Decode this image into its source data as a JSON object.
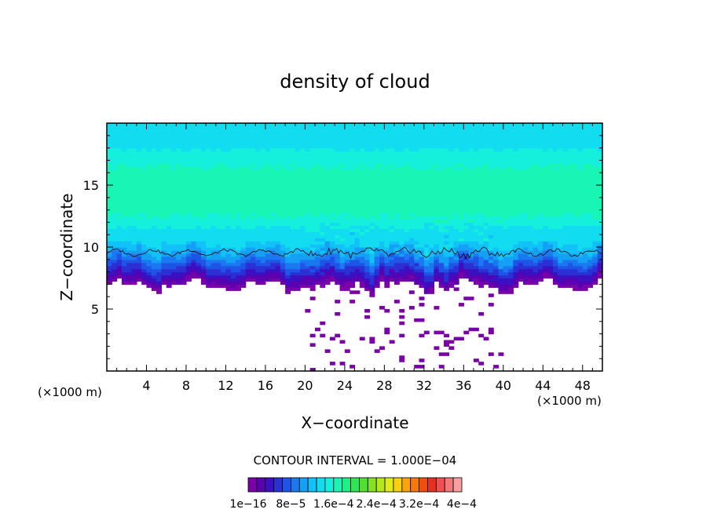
{
  "chart_data": {
    "type": "heatmap",
    "title": "density of cloud",
    "xlabel": "X−coordinate",
    "ylabel": "Z−coordinate",
    "x_unit_left": "(×1000 m)",
    "x_unit_right": "(×1000 m)",
    "xlim": [
      0,
      50
    ],
    "ylim": [
      0,
      20
    ],
    "x_ticks": [
      4,
      8,
      12,
      16,
      20,
      24,
      28,
      32,
      36,
      40,
      44,
      48
    ],
    "y_ticks": [
      5,
      10,
      15
    ],
    "contour_interval_text": "CONTOUR INTERVAL = 1.000E−04",
    "colorbar_labels": [
      "1e−16",
      "8e−5",
      "1.6e−4",
      "2.4e−4",
      "3.2e−4",
      "4e−4"
    ],
    "colorbar_colors": [
      "#7a00a8",
      "#5a00b0",
      "#3a10c0",
      "#2a30d4",
      "#1e55e6",
      "#1a78f0",
      "#14a0f5",
      "#10c2f8",
      "#12dcf0",
      "#14f0dc",
      "#18f5b4",
      "#1ef088",
      "#2ce654",
      "#50e030",
      "#84e020",
      "#b4e818",
      "#e0ec14",
      "#f8d010",
      "#f8a40e",
      "#f8780c",
      "#f04e10",
      "#e83020",
      "#f05050",
      "#f47878",
      "#f8a0a0"
    ],
    "profile": {
      "z": [
        0,
        6.8,
        7.0,
        7.4,
        7.8,
        8.2,
        8.6,
        9.0,
        9.4,
        10.0,
        10.6,
        11.2,
        12.0,
        13.0,
        14.0,
        15.0,
        16.0,
        17.0,
        17.6,
        18.2,
        19.0,
        20.0
      ],
      "level": [
        -1,
        -1,
        0,
        1,
        2,
        3,
        4,
        5,
        6,
        7,
        8,
        8,
        9,
        10,
        10,
        10,
        10,
        9,
        9,
        8,
        8,
        8
      ]
    }
  }
}
